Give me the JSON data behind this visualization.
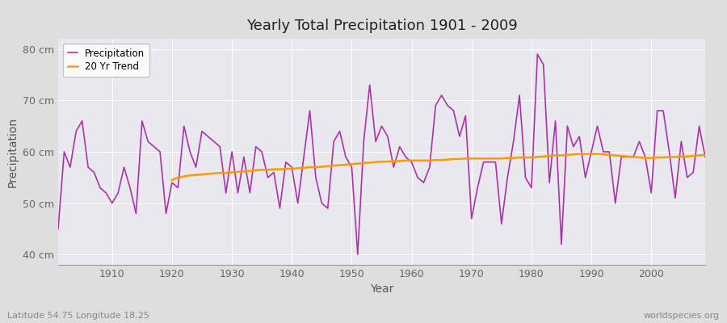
{
  "title": "Yearly Total Precipitation 1901 - 2009",
  "xlabel": "Year",
  "ylabel": "Precipitation",
  "subtitle": "Latitude 54.75 Longitude 18.25",
  "watermark": "worldspecies.org",
  "bg_color": "#dedede",
  "plot_bg_color": "#e8e8ee",
  "precip_color": "#aa33aa",
  "trend_color": "#ff9900",
  "precip_label": "Precipitation",
  "trend_label": "20 Yr Trend",
  "ylim": [
    38,
    82
  ],
  "yticks": [
    40,
    50,
    60,
    70,
    80
  ],
  "ytick_labels": [
    "40 cm",
    "50 cm",
    "60 cm",
    "70 cm",
    "80 cm"
  ],
  "xticks": [
    1910,
    1920,
    1930,
    1940,
    1950,
    1960,
    1970,
    1980,
    1990,
    2000
  ],
  "years": [
    1901,
    1902,
    1903,
    1904,
    1905,
    1906,
    1907,
    1908,
    1909,
    1910,
    1911,
    1912,
    1913,
    1914,
    1915,
    1916,
    1917,
    1918,
    1919,
    1920,
    1921,
    1922,
    1923,
    1924,
    1925,
    1926,
    1927,
    1928,
    1929,
    1930,
    1931,
    1932,
    1933,
    1934,
    1935,
    1936,
    1937,
    1938,
    1939,
    1940,
    1941,
    1942,
    1943,
    1944,
    1945,
    1946,
    1947,
    1948,
    1949,
    1950,
    1951,
    1952,
    1953,
    1954,
    1955,
    1956,
    1957,
    1958,
    1959,
    1960,
    1961,
    1962,
    1963,
    1964,
    1965,
    1966,
    1967,
    1968,
    1969,
    1970,
    1971,
    1972,
    1973,
    1974,
    1975,
    1976,
    1977,
    1978,
    1979,
    1980,
    1981,
    1982,
    1983,
    1984,
    1985,
    1986,
    1987,
    1988,
    1989,
    1990,
    1991,
    1992,
    1993,
    1994,
    1995,
    1996,
    1997,
    1998,
    1999,
    2000,
    2001,
    2002,
    2003,
    2004,
    2005,
    2006,
    2007,
    2008,
    2009
  ],
  "precip": [
    45,
    60,
    57,
    64,
    66,
    57,
    56,
    53,
    52,
    50,
    52,
    57,
    53,
    48,
    66,
    62,
    61,
    60,
    48,
    54,
    53,
    65,
    60,
    57,
    64,
    63,
    62,
    61,
    52,
    60,
    52,
    59,
    52,
    61,
    60,
    55,
    56,
    49,
    58,
    57,
    50,
    59,
    68,
    55,
    50,
    49,
    62,
    64,
    59,
    57,
    40,
    62,
    73,
    62,
    65,
    63,
    57,
    61,
    59,
    58,
    55,
    54,
    57,
    69,
    71,
    69,
    68,
    63,
    67,
    47,
    53,
    58,
    58,
    58,
    46,
    55,
    62,
    71,
    55,
    53,
    79,
    77,
    54,
    66,
    42,
    65,
    61,
    63,
    55,
    60,
    65,
    60,
    60,
    50,
    59,
    59,
    59,
    62,
    59,
    52,
    68,
    68,
    60,
    51,
    62,
    55,
    56,
    65,
    59
  ],
  "trend": [
    null,
    null,
    null,
    null,
    null,
    null,
    null,
    null,
    null,
    null,
    null,
    null,
    null,
    null,
    null,
    null,
    null,
    null,
    null,
    54.5,
    55.0,
    55.2,
    55.4,
    55.5,
    55.6,
    55.7,
    55.8,
    55.9,
    55.9,
    56.0,
    56.1,
    56.2,
    56.3,
    56.4,
    56.5,
    56.5,
    56.6,
    56.6,
    56.7,
    56.7,
    56.8,
    56.9,
    57.0,
    57.0,
    57.1,
    57.2,
    57.3,
    57.4,
    57.5,
    57.6,
    57.7,
    57.8,
    57.9,
    58.0,
    58.1,
    58.1,
    58.2,
    58.2,
    58.3,
    58.3,
    58.3,
    58.3,
    58.3,
    58.4,
    58.4,
    58.5,
    58.6,
    58.6,
    58.7,
    58.7,
    58.7,
    58.7,
    58.7,
    58.7,
    58.7,
    58.8,
    58.8,
    58.9,
    58.9,
    58.9,
    59.0,
    59.1,
    59.2,
    59.3,
    59.3,
    59.4,
    59.5,
    59.6,
    59.6,
    59.6,
    59.6,
    59.5,
    59.4,
    59.3,
    59.2,
    59.1,
    59.0,
    58.9,
    58.8,
    58.8,
    58.9,
    58.9,
    59.0,
    59.0,
    59.1,
    59.1,
    59.2,
    59.3,
    59.4
  ]
}
